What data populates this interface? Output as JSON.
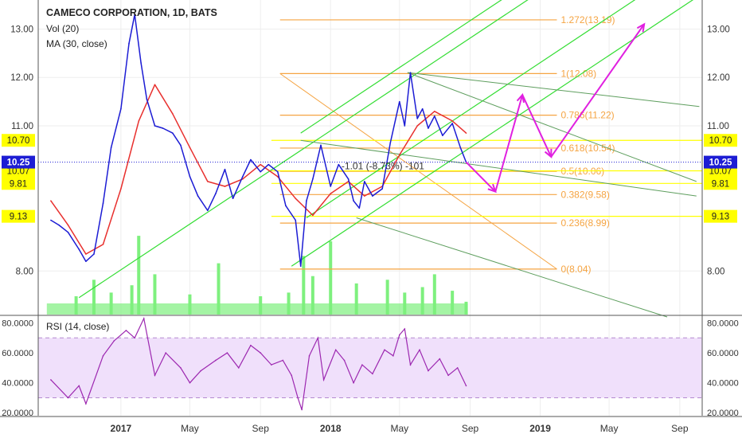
{
  "header": {
    "title": "CAMECO CORPORATION, 1D, BATS",
    "vol_label": "Vol (20)",
    "ma_label": "MA (30, close)",
    "rsi_label": "RSI (14, close)"
  },
  "colors": {
    "price": "#1c1cd4",
    "ma": "#e8302e",
    "volume": "#7ef07e",
    "rsi": "#9c27b0",
    "rsi_band": "#f0e0fb",
    "pitchfork_green": "#33dd33",
    "pitchfork_dark": "#5e9e5e",
    "fib": "#f5a442",
    "yellow": "#ffff00",
    "arrow": "#e020e0",
    "current": "#1c1cd4"
  },
  "chart_data": [
    {
      "type": "line",
      "title": "CAMECO CORPORATION, 1D, BATS",
      "series": [
        {
          "name": "price",
          "x": [
            "2016-09-01",
            "2016-09-15",
            "2016-10-01",
            "2016-10-20",
            "2016-11-01",
            "2016-11-15",
            "2016-12-01",
            "2016-12-15",
            "2017-01-01",
            "2017-01-15",
            "2017-01-25",
            "2017-02-05",
            "2017-02-15",
            "2017-03-01",
            "2017-03-15",
            "2017-04-01",
            "2017-04-15",
            "2017-05-01",
            "2017-05-15",
            "2017-06-01",
            "2017-06-15",
            "2017-07-01",
            "2017-07-15",
            "2017-08-01",
            "2017-08-15",
            "2017-09-01",
            "2017-09-15",
            "2017-10-01",
            "2017-10-15",
            "2017-11-01",
            "2017-11-10",
            "2017-11-20",
            "2017-12-01",
            "2017-12-15",
            "2018-01-01",
            "2018-01-15",
            "2018-02-01",
            "2018-02-10",
            "2018-02-20",
            "2018-03-01",
            "2018-03-15",
            "2018-04-01",
            "2018-04-15",
            "2018-05-01",
            "2018-05-10",
            "2018-05-20",
            "2018-06-01",
            "2018-06-10",
            "2018-06-20",
            "2018-07-01",
            "2018-07-15",
            "2018-08-01",
            "2018-08-15",
            "2018-08-25"
          ],
          "values": [
            9.05,
            8.95,
            8.8,
            8.45,
            8.2,
            8.35,
            9.4,
            10.55,
            11.35,
            12.7,
            13.3,
            12.3,
            11.55,
            11.0,
            10.95,
            10.85,
            10.6,
            9.95,
            9.55,
            9.25,
            9.6,
            10.1,
            9.5,
            9.95,
            10.3,
            10.05,
            10.2,
            10.05,
            9.35,
            9.05,
            8.1,
            9.45,
            9.9,
            10.6,
            9.75,
            10.2,
            9.9,
            9.45,
            9.3,
            9.85,
            9.55,
            9.7,
            10.65,
            11.5,
            11.0,
            12.1,
            11.15,
            11.35,
            10.95,
            11.2,
            10.8,
            11.05,
            10.55,
            10.25
          ]
        },
        {
          "name": "MA (30, close)",
          "x": [
            "2016-09-01",
            "2016-10-01",
            "2016-11-01",
            "2016-12-01",
            "2017-01-01",
            "2017-02-01",
            "2017-03-01",
            "2017-04-01",
            "2017-05-01",
            "2017-06-01",
            "2017-07-01",
            "2017-08-01",
            "2017-09-01",
            "2017-10-01",
            "2017-11-01",
            "2017-12-01",
            "2018-01-01",
            "2018-02-01",
            "2018-03-01",
            "2018-04-01",
            "2018-05-01",
            "2018-06-01",
            "2018-07-01",
            "2018-08-01",
            "2018-08-25"
          ],
          "values": [
            9.45,
            8.95,
            8.35,
            8.55,
            9.7,
            11.1,
            11.85,
            11.25,
            10.55,
            9.85,
            9.75,
            9.9,
            10.2,
            9.95,
            9.5,
            9.15,
            9.6,
            9.85,
            9.55,
            9.75,
            10.4,
            11.0,
            11.3,
            11.1,
            10.85
          ]
        }
      ],
      "volume": {
        "x": [
          "2016-10-15",
          "2016-11-15",
          "2016-12-15",
          "2017-01-20",
          "2017-02-01",
          "2017-03-01",
          "2017-05-01",
          "2017-06-20",
          "2017-09-01",
          "2017-10-20",
          "2017-11-15",
          "2017-12-01",
          "2018-01-01",
          "2018-02-15",
          "2018-04-10",
          "2018-05-10",
          "2018-06-10",
          "2018-07-01",
          "2018-08-01",
          "2018-08-25"
        ],
        "values": [
          1.0,
          1.9,
          1.2,
          1.6,
          4.3,
          2.2,
          1.1,
          2.8,
          1.0,
          1.2,
          3.2,
          2.1,
          4.0,
          1.7,
          1.9,
          1.2,
          1.5,
          2.2,
          1.3,
          0.7
        ]
      },
      "current_price": "10.25",
      "price_labels": [
        "10.70",
        "10.07",
        "9.81",
        "9.13"
      ],
      "yticks": [
        "13.00",
        "12.00",
        "11.00",
        "8.00"
      ],
      "measure_label": "-1.01 (-8.73%) -101",
      "fib_levels": [
        {
          "label": "1.272(13.19)",
          "value": 13.19
        },
        {
          "label": "1(12.08)",
          "value": 12.08
        },
        {
          "label": "0.786(11.22)",
          "value": 11.22
        },
        {
          "label": "0.618(10.54)",
          "value": 10.54
        },
        {
          "label": "0.5(10.06)",
          "value": 10.06
        },
        {
          "label": "0.382(9.58)",
          "value": 9.58
        },
        {
          "label": "0.236(8.99)",
          "value": 8.99
        },
        {
          "label": "0(8.04)",
          "value": 8.04
        }
      ],
      "ylim": [
        7.1,
        13.6
      ]
    },
    {
      "type": "line",
      "series": [
        {
          "name": "RSI (14, close)",
          "x": [
            "2016-09-01",
            "2016-10-01",
            "2016-10-20",
            "2016-11-01",
            "2016-12-01",
            "2016-12-20",
            "2017-01-10",
            "2017-01-25",
            "2017-02-10",
            "2017-03-01",
            "2017-03-20",
            "2017-04-15",
            "2017-05-01",
            "2017-05-20",
            "2017-06-15",
            "2017-07-05",
            "2017-07-25",
            "2017-08-15",
            "2017-09-01",
            "2017-09-20",
            "2017-10-10",
            "2017-10-25",
            "2017-11-05",
            "2017-11-12",
            "2017-11-25",
            "2017-12-10",
            "2017-12-20",
            "2018-01-10",
            "2018-01-25",
            "2018-02-10",
            "2018-02-25",
            "2018-03-15",
            "2018-04-05",
            "2018-04-20",
            "2018-05-01",
            "2018-05-10",
            "2018-05-20",
            "2018-06-05",
            "2018-06-20",
            "2018-07-10",
            "2018-07-25",
            "2018-08-10",
            "2018-08-25"
          ],
          "values": [
            42,
            30,
            38,
            26,
            58,
            68,
            75,
            70,
            83,
            45,
            60,
            50,
            40,
            48,
            55,
            60,
            50,
            65,
            60,
            52,
            55,
            45,
            30,
            22,
            58,
            70,
            42,
            62,
            55,
            40,
            52,
            46,
            62,
            58,
            72,
            76,
            52,
            62,
            48,
            56,
            45,
            50,
            38
          ]
        }
      ],
      "bands": [
        30,
        70
      ],
      "ylim": [
        18,
        84
      ],
      "yticks": [
        "80.0000",
        "60.0000",
        "40.0000",
        "20.0000"
      ]
    }
  ],
  "xaxis": {
    "ticks": [
      {
        "label": "2017",
        "date": "2017-01-01",
        "bold": true
      },
      {
        "label": "May",
        "date": "2017-05-01",
        "bold": false
      },
      {
        "label": "Sep",
        "date": "2017-09-01",
        "bold": false
      },
      {
        "label": "2018",
        "date": "2018-01-01",
        "bold": true
      },
      {
        "label": "May",
        "date": "2018-05-01",
        "bold": false
      },
      {
        "label": "Sep",
        "date": "2018-09-01",
        "bold": false
      },
      {
        "label": "2019",
        "date": "2019-01-01",
        "bold": true
      },
      {
        "label": "May",
        "date": "2019-05-01",
        "bold": false
      },
      {
        "label": "Sep",
        "date": "2019-09-01",
        "bold": false
      }
    ],
    "range": [
      "2016-08-10",
      "2019-10-10"
    ]
  },
  "projection": [
    {
      "date": "2018-08-25",
      "value": 10.25
    },
    {
      "date": "2018-10-15",
      "value": 9.64
    },
    {
      "date": "2018-12-01",
      "value": 11.64
    },
    {
      "date": "2019-01-20",
      "value": 10.36
    },
    {
      "date": "2019-07-01",
      "value": 13.1
    }
  ]
}
